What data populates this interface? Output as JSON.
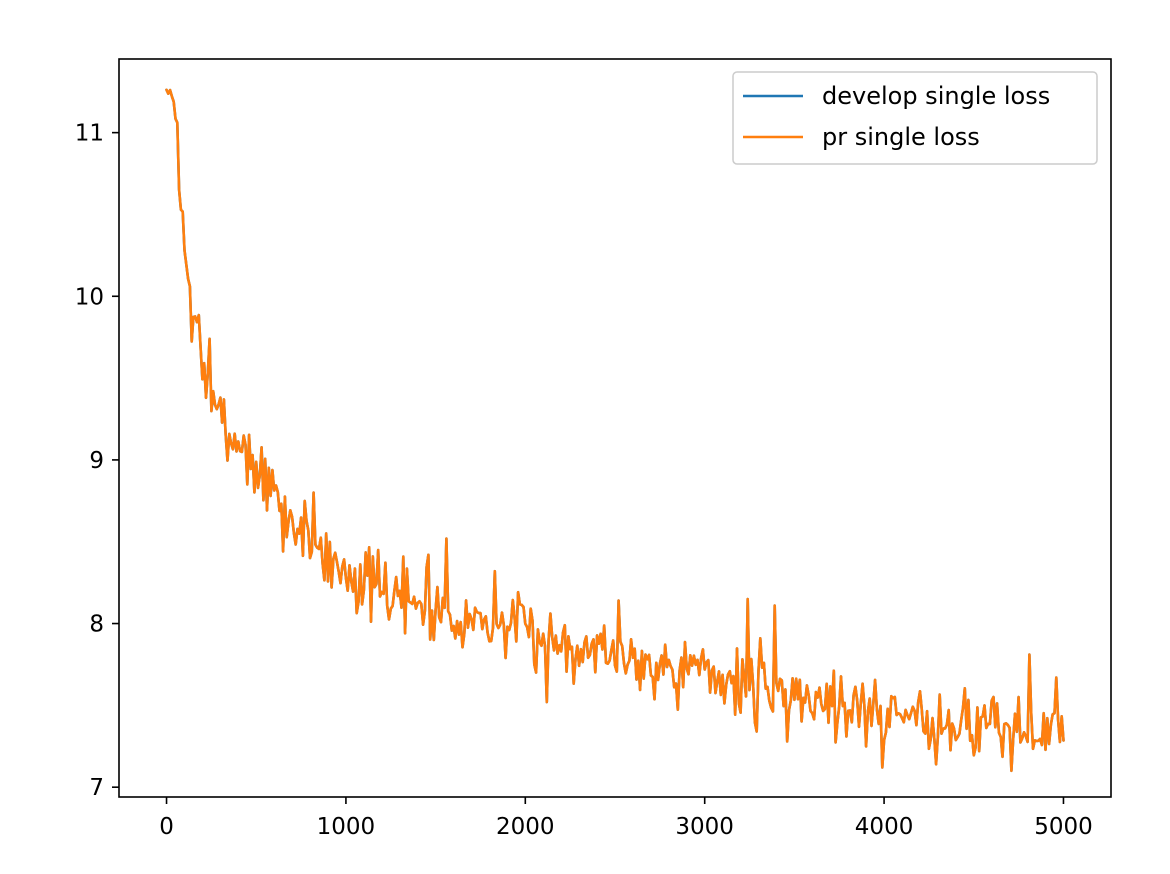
{
  "chart_data": {
    "type": "line",
    "title": "",
    "xlabel": "",
    "ylabel": "",
    "xlim": [
      -265,
      5265
    ],
    "ylim": [
      6.94,
      11.45
    ],
    "x_ticks": [
      0,
      1000,
      2000,
      3000,
      4000,
      5000
    ],
    "y_ticks": [
      7,
      8,
      9,
      10,
      11
    ],
    "grid": false,
    "legend_position": "top-right",
    "noise_seed": 7,
    "anchors": {
      "x": [
        0,
        20,
        40,
        60,
        80,
        100,
        120,
        150,
        180,
        200,
        250,
        300,
        400,
        500,
        600,
        700,
        800,
        900,
        1000,
        1200,
        1400,
        1600,
        1800,
        2000,
        2200,
        2400,
        2600,
        2800,
        3000,
        3200,
        3400,
        3600,
        3800,
        4000,
        4200,
        4400,
        4600,
        4800,
        5000
      ],
      "y": [
        11.25,
        11.25,
        11.18,
        11.0,
        10.6,
        10.3,
        10.1,
        9.85,
        9.72,
        9.6,
        9.35,
        9.22,
        9.12,
        8.95,
        8.78,
        8.62,
        8.52,
        8.42,
        8.32,
        8.2,
        8.12,
        8.06,
        8.0,
        7.96,
        7.9,
        7.85,
        7.8,
        7.74,
        7.7,
        7.64,
        7.6,
        7.55,
        7.5,
        7.46,
        7.43,
        7.4,
        7.37,
        7.34,
        7.33
      ]
    },
    "spikes": [
      {
        "x": 1560,
        "y": 8.52
      },
      {
        "x": 1460,
        "y": 8.42
      },
      {
        "x": 1830,
        "y": 8.32
      },
      {
        "x": 2120,
        "y": 7.52
      },
      {
        "x": 2060,
        "y": 7.7
      },
      {
        "x": 1320,
        "y": 8.41
      },
      {
        "x": 3240,
        "y": 8.15
      },
      {
        "x": 3390,
        "y": 8.11
      },
      {
        "x": 3290,
        "y": 7.34
      },
      {
        "x": 3460,
        "y": 7.28
      },
      {
        "x": 3990,
        "y": 7.12
      },
      {
        "x": 4710,
        "y": 7.1
      },
      {
        "x": 4810,
        "y": 7.81
      },
      {
        "x": 4960,
        "y": 7.67
      },
      {
        "x": 4290,
        "y": 7.14
      },
      {
        "x": 2520,
        "y": 8.14
      },
      {
        "x": 820,
        "y": 8.8
      },
      {
        "x": 650,
        "y": 8.44
      },
      {
        "x": 240,
        "y": 9.74
      },
      {
        "x": 920,
        "y": 8.22
      }
    ],
    "series": [
      {
        "name": "develop single loss",
        "color": "#1f77b4"
      },
      {
        "name": "pr single loss",
        "color": "#ff7f0e"
      }
    ]
  }
}
